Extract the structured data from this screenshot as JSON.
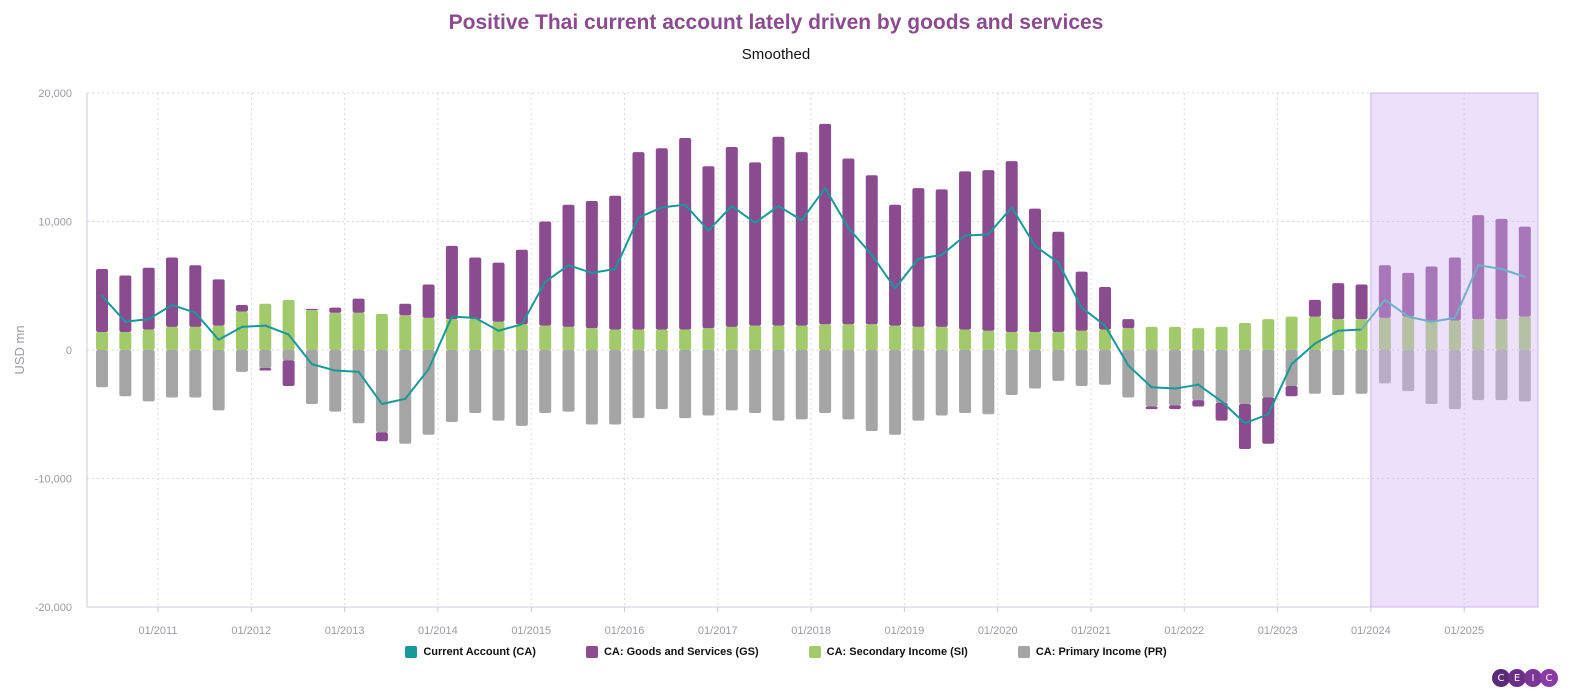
{
  "chart_data": {
    "type": "bar",
    "title": "Positive Thai current account lately driven by goods and services",
    "subtitle": "Smoothed",
    "ylabel": "USD mn",
    "xlabel": "",
    "ylim": [
      -20000,
      20000
    ],
    "y_ticks": [
      "20,000",
      "10,000",
      "0",
      "-10,000",
      "-20,000"
    ],
    "x_ticks": [
      "01/2011",
      "01/2012",
      "01/2013",
      "01/2014",
      "01/2015",
      "01/2016",
      "01/2017",
      "01/2018",
      "01/2019",
      "01/2020",
      "01/2021",
      "01/2022",
      "01/2023",
      "01/2024",
      "01/2025"
    ],
    "grid": true,
    "stacked": true,
    "legend_position": "bottom",
    "shaded_from": "01/2024",
    "categories": [
      "Q2 2010",
      "Q3 2010",
      "Q4 2010",
      "Q1 2011",
      "Q2 2011",
      "Q3 2011",
      "Q4 2011",
      "Q1 2012",
      "Q2 2012",
      "Q3 2012",
      "Q4 2012",
      "Q1 2013",
      "Q2 2013",
      "Q3 2013",
      "Q4 2013",
      "Q1 2014",
      "Q2 2014",
      "Q3 2014",
      "Q4 2014",
      "Q1 2015",
      "Q2 2015",
      "Q3 2015",
      "Q4 2015",
      "Q1 2016",
      "Q2 2016",
      "Q3 2016",
      "Q4 2016",
      "Q1 2017",
      "Q2 2017",
      "Q3 2017",
      "Q4 2017",
      "Q1 2018",
      "Q2 2018",
      "Q3 2018",
      "Q4 2018",
      "Q1 2019",
      "Q2 2019",
      "Q3 2019",
      "Q4 2019",
      "Q1 2020",
      "Q2 2020",
      "Q3 2020",
      "Q4 2020",
      "Q1 2021",
      "Q2 2021",
      "Q3 2021",
      "Q4 2021",
      "Q1 2022",
      "Q2 2022",
      "Q3 2022",
      "Q4 2022",
      "Q1 2023",
      "Q2 2023",
      "Q3 2023",
      "Q4 2023",
      "Q1 2024",
      "Q2 2024",
      "Q3 2024",
      "Q4 2024",
      "Q1 2025",
      "Q2 2025",
      "Q3 2025"
    ],
    "series": [
      {
        "name": "Current Account (CA)",
        "kind": "line",
        "color": "#17999a",
        "values": [
          4200,
          2200,
          2400,
          3500,
          2900,
          800,
          1800,
          1900,
          1200,
          -1100,
          -1600,
          -1700,
          -4200,
          -3800,
          -1500,
          2600,
          2500,
          1500,
          2000,
          5300,
          6600,
          6000,
          6300,
          10300,
          11100,
          11300,
          9300,
          11200,
          9900,
          11200,
          10100,
          12600,
          9500,
          7400,
          4800,
          7100,
          7400,
          8900,
          9000,
          11100,
          8100,
          6800,
          3300,
          1900,
          -1200,
          -2900,
          -3000,
          -2700,
          -4000,
          -5700,
          -5000,
          -1100,
          500,
          1500,
          1600,
          3900,
          2600,
          2200,
          2500,
          6600,
          6300,
          5700
        ]
      },
      {
        "name": "CA: Goods and Services (GS)",
        "kind": "bar",
        "color": "#8a4b8f",
        "values": [
          4900,
          4400,
          4800,
          5400,
          4800,
          3600,
          500,
          -200,
          -2000,
          100,
          400,
          1100,
          -700,
          900,
          2600,
          5700,
          4800,
          4600,
          5800,
          8100,
          9500,
          9900,
          10400,
          13800,
          14100,
          14900,
          12600,
          14000,
          12700,
          14700,
          13500,
          15600,
          12900,
          11600,
          9400,
          10800,
          10700,
          12300,
          12500,
          13300,
          9600,
          7800,
          4600,
          3300,
          700,
          -200,
          -300,
          -500,
          -1400,
          -3500,
          -3600,
          -800,
          1300,
          2800,
          2700,
          4100,
          3400,
          4200,
          4900,
          8100,
          7800,
          7000
        ]
      },
      {
        "name": "CA: Secondary Income (SI)",
        "kind": "bar",
        "color": "#a2c96b",
        "values": [
          1400,
          1400,
          1600,
          1800,
          1800,
          1900,
          3000,
          3600,
          3900,
          3100,
          2900,
          2900,
          2800,
          2700,
          2500,
          2400,
          2400,
          2200,
          2000,
          1900,
          1800,
          1700,
          1600,
          1600,
          1600,
          1600,
          1700,
          1800,
          1900,
          1900,
          1900,
          2000,
          2000,
          2000,
          1900,
          1800,
          1800,
          1600,
          1500,
          1400,
          1400,
          1400,
          1500,
          1600,
          1700,
          1800,
          1800,
          1700,
          1800,
          2100,
          2400,
          2600,
          2600,
          2400,
          2400,
          2500,
          2600,
          2300,
          2300,
          2400,
          2400,
          2600
        ]
      },
      {
        "name": "CA: Primary Income (PR)",
        "kind": "bar",
        "color": "#a5a5a5",
        "values": [
          -2900,
          -3600,
          -4000,
          -3700,
          -3700,
          -4700,
          -1700,
          -1400,
          -800,
          -4200,
          -4800,
          -5700,
          -6400,
          -7300,
          -6600,
          -5600,
          -4900,
          -5500,
          -5900,
          -4900,
          -4800,
          -5800,
          -5800,
          -5300,
          -4600,
          -5300,
          -5100,
          -4700,
          -4900,
          -5500,
          -5400,
          -4900,
          -5400,
          -6300,
          -6600,
          -5500,
          -5100,
          -4900,
          -5000,
          -3500,
          -3000,
          -2400,
          -2800,
          -2700,
          -3700,
          -4400,
          -4300,
          -3900,
          -4100,
          -4200,
          -3700,
          -2800,
          -3400,
          -3500,
          -3400,
          -2600,
          -3200,
          -4200,
          -4600,
          -3900,
          -3900,
          -4000
        ]
      }
    ]
  },
  "legend": {
    "items": [
      {
        "label": "Current Account (CA)",
        "color": "#17999a"
      },
      {
        "label": "CA: Goods and Services (GS)",
        "color": "#8a4b8f"
      },
      {
        "label": "CA: Secondary Income (SI)",
        "color": "#a2c96b"
      },
      {
        "label": "CA: Primary Income (PR)",
        "color": "#a5a5a5"
      }
    ]
  },
  "logo": {
    "text": "CEIC",
    "letters": [
      "C",
      "E",
      "I",
      "C"
    ]
  }
}
